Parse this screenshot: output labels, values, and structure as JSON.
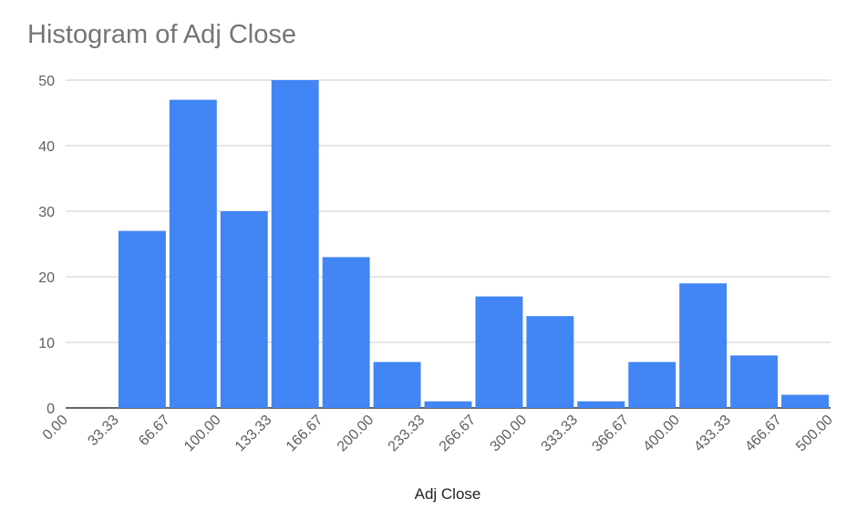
{
  "chart_data": {
    "type": "bar",
    "title": "Histogram of Adj Close",
    "xlabel": "Adj Close",
    "ylabel": "",
    "x_ticks": [
      "0.00",
      "33.33",
      "66.67",
      "100.00",
      "133.33",
      "166.67",
      "200.00",
      "233.33",
      "266.67",
      "300.00",
      "333.33",
      "366.67",
      "400.00",
      "433.33",
      "466.67",
      "500.00"
    ],
    "y_ticks": [
      0,
      10,
      20,
      30,
      40,
      50
    ],
    "ylim": [
      0,
      50
    ],
    "xlim": [
      0,
      500
    ],
    "bin_edges": [
      0,
      33.33,
      66.67,
      100,
      133.33,
      166.67,
      200,
      233.33,
      266.67,
      300,
      333.33,
      366.67,
      400,
      433.33,
      466.67,
      500
    ],
    "values": [
      0,
      27,
      47,
      30,
      50,
      23,
      7,
      1,
      17,
      14,
      1,
      7,
      19,
      8,
      2
    ],
    "grid": true,
    "legend": "none",
    "bar_color": "#4285f4"
  }
}
